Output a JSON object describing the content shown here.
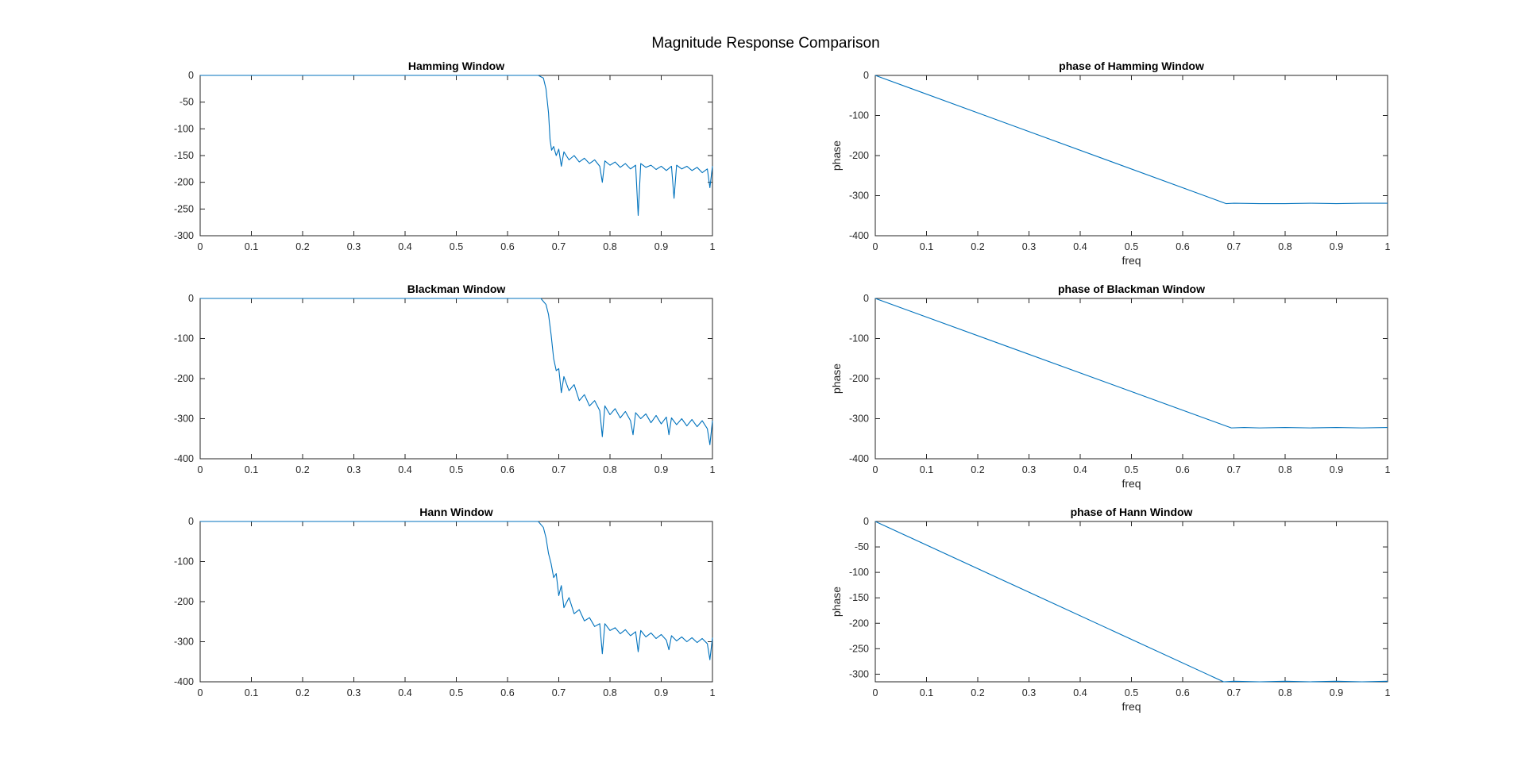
{
  "figure": {
    "title": "Magnitude Response Comparison"
  },
  "chart_data": [
    {
      "type": "line",
      "title": "Hamming Window",
      "xlabel": "",
      "ylabel": "",
      "xlim": [
        0,
        1
      ],
      "ylim": [
        -300,
        0
      ],
      "xticks": [
        0,
        0.1,
        0.2,
        0.3,
        0.4,
        0.5,
        0.6,
        0.7,
        0.8,
        0.9,
        1
      ],
      "yticks": [
        0,
        -50,
        -100,
        -150,
        -200,
        -250,
        -300
      ],
      "grid": false,
      "line_color": "#0072BD",
      "series": [
        {
          "x": [
            0,
            0.66,
            0.67,
            0.675,
            0.68,
            0.683,
            0.686,
            0.69,
            0.695,
            0.7,
            0.705,
            0.71,
            0.72,
            0.73,
            0.74,
            0.75,
            0.76,
            0.77,
            0.78,
            0.785,
            0.79,
            0.8,
            0.81,
            0.82,
            0.83,
            0.84,
            0.85,
            0.855,
            0.86,
            0.87,
            0.88,
            0.89,
            0.9,
            0.91,
            0.92,
            0.925,
            0.93,
            0.94,
            0.95,
            0.96,
            0.97,
            0.98,
            0.99,
            0.995,
            1.0
          ],
          "y": [
            0,
            0,
            -5,
            -25,
            -70,
            -120,
            -140,
            -133,
            -150,
            -138,
            -170,
            -143,
            -158,
            -150,
            -162,
            -155,
            -165,
            -158,
            -170,
            -200,
            -160,
            -168,
            -162,
            -172,
            -165,
            -175,
            -168,
            -262,
            -165,
            -172,
            -168,
            -176,
            -170,
            -178,
            -170,
            -230,
            -168,
            -175,
            -170,
            -178,
            -172,
            -182,
            -175,
            -210,
            -170
          ]
        }
      ]
    },
    {
      "type": "line",
      "title": "phase of Hamming Window",
      "xlabel": "freq",
      "ylabel": "phase",
      "xlim": [
        0,
        1
      ],
      "ylim": [
        -400,
        0
      ],
      "xticks": [
        0,
        0.1,
        0.2,
        0.3,
        0.4,
        0.5,
        0.6,
        0.7,
        0.8,
        0.9,
        1
      ],
      "yticks": [
        0,
        -100,
        -200,
        -300,
        -400
      ],
      "grid": false,
      "line_color": "#0072BD",
      "series": [
        {
          "x": [
            0,
            0.685,
            0.7,
            0.75,
            0.8,
            0.85,
            0.9,
            0.95,
            1.0
          ],
          "y": [
            0,
            -320,
            -319,
            -320,
            -320,
            -319,
            -320,
            -319,
            -319
          ]
        }
      ]
    },
    {
      "type": "line",
      "title": "Blackman Window",
      "xlabel": "",
      "ylabel": "",
      "xlim": [
        0,
        1
      ],
      "ylim": [
        -400,
        0
      ],
      "xticks": [
        0,
        0.1,
        0.2,
        0.3,
        0.4,
        0.5,
        0.6,
        0.7,
        0.8,
        0.9,
        1
      ],
      "yticks": [
        0,
        -100,
        -200,
        -300,
        -400
      ],
      "grid": false,
      "line_color": "#0072BD",
      "series": [
        {
          "x": [
            0,
            0.665,
            0.675,
            0.68,
            0.685,
            0.69,
            0.695,
            0.7,
            0.705,
            0.71,
            0.72,
            0.73,
            0.74,
            0.75,
            0.76,
            0.77,
            0.78,
            0.785,
            0.79,
            0.8,
            0.81,
            0.82,
            0.83,
            0.84,
            0.845,
            0.85,
            0.86,
            0.87,
            0.88,
            0.89,
            0.9,
            0.91,
            0.915,
            0.92,
            0.93,
            0.94,
            0.95,
            0.96,
            0.97,
            0.98,
            0.99,
            0.995,
            1.0
          ],
          "y": [
            0,
            0,
            -15,
            -40,
            -90,
            -150,
            -180,
            -175,
            -235,
            -195,
            -230,
            -215,
            -255,
            -240,
            -268,
            -255,
            -280,
            -345,
            -268,
            -290,
            -275,
            -298,
            -282,
            -305,
            -340,
            -285,
            -300,
            -288,
            -310,
            -292,
            -313,
            -296,
            -340,
            -298,
            -315,
            -300,
            -318,
            -302,
            -320,
            -305,
            -325,
            -365,
            -305
          ]
        }
      ]
    },
    {
      "type": "line",
      "title": "phase of Blackman Window",
      "xlabel": "freq",
      "ylabel": "phase",
      "xlim": [
        0,
        1
      ],
      "ylim": [
        -400,
        0
      ],
      "xticks": [
        0,
        0.1,
        0.2,
        0.3,
        0.4,
        0.5,
        0.6,
        0.7,
        0.8,
        0.9,
        1
      ],
      "yticks": [
        0,
        -100,
        -200,
        -300,
        -400
      ],
      "grid": false,
      "line_color": "#0072BD",
      "series": [
        {
          "x": [
            0,
            0.695,
            0.72,
            0.75,
            0.8,
            0.85,
            0.9,
            0.95,
            1.0
          ],
          "y": [
            0,
            -323,
            -322,
            -323,
            -322,
            -323,
            -322,
            -323,
            -322
          ]
        }
      ]
    },
    {
      "type": "line",
      "title": "Hann Window",
      "xlabel": "",
      "ylabel": "",
      "xlim": [
        0,
        1
      ],
      "ylim": [
        -400,
        0
      ],
      "xticks": [
        0,
        0.1,
        0.2,
        0.3,
        0.4,
        0.5,
        0.6,
        0.7,
        0.8,
        0.9,
        1
      ],
      "yticks": [
        0,
        -100,
        -200,
        -300,
        -400
      ],
      "grid": false,
      "line_color": "#0072BD",
      "series": [
        {
          "x": [
            0,
            0.66,
            0.67,
            0.675,
            0.68,
            0.685,
            0.69,
            0.695,
            0.7,
            0.705,
            0.71,
            0.72,
            0.73,
            0.74,
            0.75,
            0.76,
            0.77,
            0.78,
            0.785,
            0.79,
            0.8,
            0.81,
            0.82,
            0.83,
            0.84,
            0.85,
            0.855,
            0.86,
            0.87,
            0.88,
            0.89,
            0.9,
            0.91,
            0.915,
            0.92,
            0.93,
            0.94,
            0.95,
            0.96,
            0.97,
            0.98,
            0.99,
            0.995,
            1.0
          ],
          "y": [
            0,
            0,
            -15,
            -40,
            -80,
            -105,
            -140,
            -130,
            -185,
            -160,
            -215,
            -190,
            -230,
            -220,
            -248,
            -240,
            -262,
            -255,
            -330,
            -255,
            -272,
            -265,
            -280,
            -270,
            -285,
            -275,
            -325,
            -272,
            -288,
            -278,
            -292,
            -282,
            -296,
            -320,
            -285,
            -298,
            -288,
            -300,
            -290,
            -302,
            -292,
            -305,
            -345,
            -290
          ]
        }
      ]
    },
    {
      "type": "line",
      "title": "phase of Hann Window",
      "xlabel": "freq",
      "ylabel": "phase",
      "xlim": [
        0,
        1
      ],
      "ylim": [
        -315,
        0
      ],
      "xticks": [
        0,
        0.1,
        0.2,
        0.3,
        0.4,
        0.5,
        0.6,
        0.7,
        0.8,
        0.9,
        1
      ],
      "yticks": [
        0,
        -50,
        -100,
        -150,
        -200,
        -250,
        -300
      ],
      "grid": false,
      "line_color": "#0072BD",
      "series": [
        {
          "x": [
            0,
            0.68,
            0.7,
            0.75,
            0.8,
            0.85,
            0.9,
            0.95,
            1.0
          ],
          "y": [
            0,
            -315,
            -314,
            -315,
            -314,
            -315,
            -314,
            -315,
            -314
          ]
        }
      ]
    }
  ]
}
